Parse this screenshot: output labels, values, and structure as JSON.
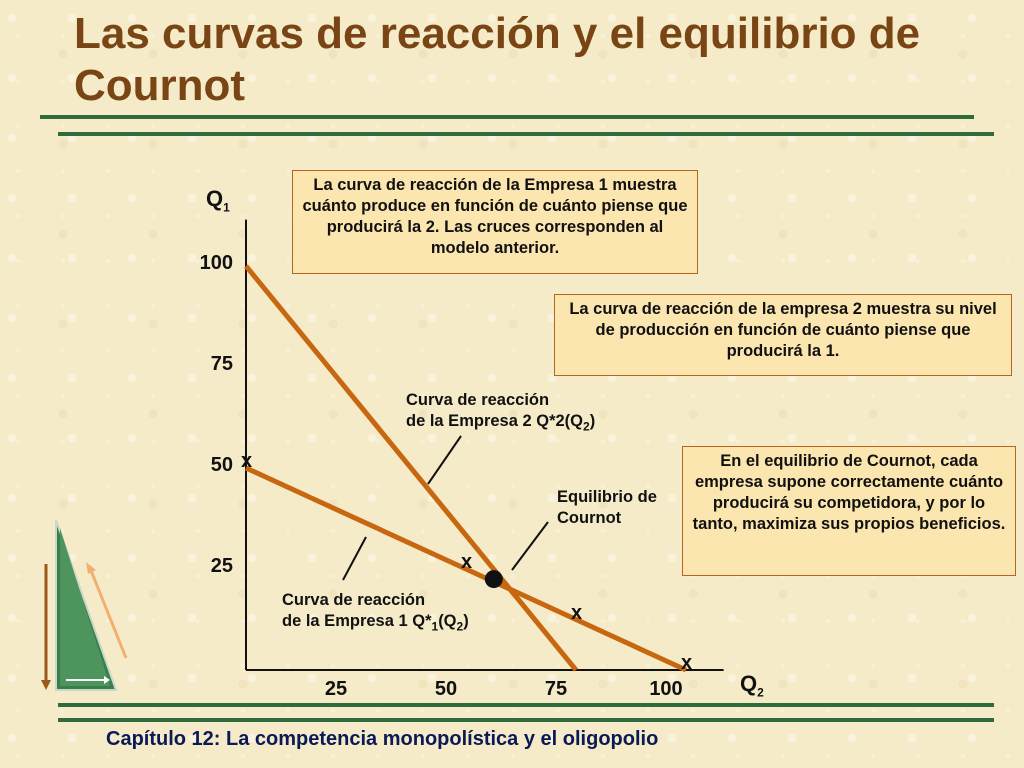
{
  "slide": {
    "title": "Las curvas de reacción y el equilibrio de Cournot",
    "footer": "Capítulo 12: La competencia monopolística y el oligopolio"
  },
  "boxes": {
    "firm1": "La curva de reacción de la Empresa 1 muestra cuánto produce en función de cuánto piense que producirá la 2.  Las cruces corresponden al modelo anterior.",
    "firm2": "La curva de reacción de la empresa 2 muestra su nivel de producción en función de cuánto piense que producirá la 1.",
    "equilibrium": "En el equilibrio de Cournot, cada empresa supone correctamente cuánto producirá su competidora, y por lo tanto, maximiza sus propios beneficios."
  },
  "chart_data": {
    "type": "line",
    "xlabel": "Q",
    "xlabel_sub": "2",
    "ylabel": "Q",
    "ylabel_sub": "1",
    "xlim": [
      0,
      104
    ],
    "ylim": [
      0,
      110
    ],
    "x_ticks": [
      25,
      50,
      75,
      100
    ],
    "y_ticks": [
      25,
      50,
      75,
      100
    ],
    "colors": {
      "curve": "#c7670f",
      "axis": "#111111"
    },
    "series": [
      {
        "key": "firm2",
        "label_line1": "Curva de reacción",
        "label_line2_pre": "de la Empresa 2 Q*2(Q",
        "label_line2_sub": "2",
        "label_line2_post": ")",
        "points": [
          [
            0,
            100
          ],
          [
            75,
            0
          ]
        ]
      },
      {
        "key": "firm1",
        "label_line1": "Curva de reacción",
        "label_line2_pre": "de la Empresa 1 Q*",
        "label_line2_sub": "1",
        "label_line2_post": "(Q",
        "label_line2_sub2": "2",
        "label_line2_post2": ")",
        "points": [
          [
            0,
            50
          ],
          [
            100,
            0
          ]
        ]
      }
    ],
    "equilibrium": {
      "point": [
        57,
        23
      ],
      "label_line1": "Equilibrio de",
      "label_line2": "Cournot"
    },
    "x_markers": [
      {
        "text": "x",
        "point": [
          0,
          50
        ]
      },
      {
        "text": "x",
        "point": [
          50,
          25
        ]
      },
      {
        "text": "x",
        "point": [
          75,
          12.5
        ]
      },
      {
        "text": "x",
        "point": [
          100,
          0
        ]
      }
    ]
  }
}
